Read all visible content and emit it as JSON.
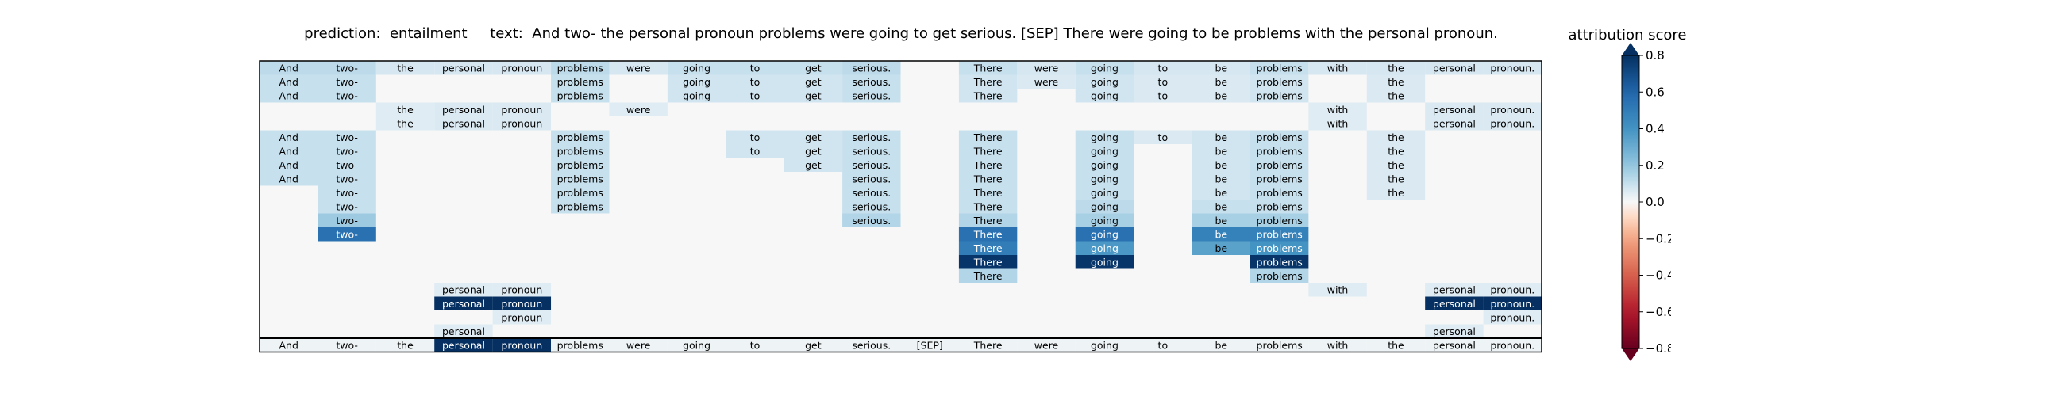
{
  "figure": {
    "title_prefix": "prediction:",
    "prediction": "entailment",
    "text_label": "text:",
    "text": "And two- the personal pronoun problems were going to get serious. [SEP] There were going to be problems with the personal pronoun."
  },
  "chart_data": {
    "type": "heatmap",
    "title": "prediction:  entailment     text:  And two- the personal pronoun problems were going to get serious. [SEP] There were going to be problems with the personal pronoun.",
    "tokens": [
      "And",
      "two-",
      "the",
      "personal",
      "pronoun",
      "problems",
      "were",
      "going",
      "to",
      "get",
      "serious.",
      "[SEP]",
      "There",
      "were",
      "going",
      "to",
      "be",
      "problems",
      "with",
      "the",
      "personal",
      "pronoun."
    ],
    "rows": [
      {
        "cells": [
          [
            0,
            0.12
          ],
          [
            1,
            0.12
          ],
          [
            2,
            0.07
          ],
          [
            3,
            0.07
          ],
          [
            4,
            0.07
          ],
          [
            5,
            0.12
          ],
          [
            6,
            0.07
          ],
          [
            7,
            0.1
          ],
          [
            8,
            0.1
          ],
          [
            9,
            0.1
          ],
          [
            10,
            0.12
          ],
          [
            12,
            0.1
          ],
          [
            13,
            0.07
          ],
          [
            14,
            0.1
          ],
          [
            15,
            0.07
          ],
          [
            16,
            0.07
          ],
          [
            17,
            0.1
          ],
          [
            18,
            0.07
          ],
          [
            19,
            0.07
          ],
          [
            20,
            0.07
          ],
          [
            21,
            0.07
          ]
        ]
      },
      {
        "cells": [
          [
            0,
            0.1
          ],
          [
            1,
            0.1
          ],
          [
            5,
            0.1
          ],
          [
            7,
            0.08
          ],
          [
            8,
            0.08
          ],
          [
            9,
            0.08
          ],
          [
            10,
            0.1
          ],
          [
            12,
            0.08
          ],
          [
            13,
            0.06
          ],
          [
            14,
            0.08
          ],
          [
            15,
            0.06
          ],
          [
            16,
            0.06
          ],
          [
            17,
            0.08
          ],
          [
            19,
            0.06
          ]
        ]
      },
      {
        "cells": [
          [
            0,
            0.1
          ],
          [
            1,
            0.1
          ],
          [
            5,
            0.1
          ],
          [
            7,
            0.08
          ],
          [
            8,
            0.08
          ],
          [
            9,
            0.08
          ],
          [
            10,
            0.1
          ],
          [
            12,
            0.08
          ],
          [
            14,
            0.08
          ],
          [
            15,
            0.06
          ],
          [
            16,
            0.06
          ],
          [
            17,
            0.08
          ],
          [
            19,
            0.06
          ]
        ]
      },
      {
        "cells": [
          [
            2,
            0.05
          ],
          [
            3,
            0.06
          ],
          [
            4,
            0.06
          ],
          [
            6,
            0.05
          ],
          [
            18,
            0.05
          ],
          [
            20,
            0.06
          ],
          [
            21,
            0.06
          ]
        ]
      },
      {
        "cells": [
          [
            2,
            0.05
          ],
          [
            3,
            0.06
          ],
          [
            4,
            0.06
          ],
          [
            18,
            0.05
          ],
          [
            20,
            0.06
          ],
          [
            21,
            0.06
          ]
        ]
      },
      {
        "cells": [
          [
            0,
            0.1
          ],
          [
            1,
            0.1
          ],
          [
            5,
            0.1
          ],
          [
            8,
            0.08
          ],
          [
            9,
            0.08
          ],
          [
            10,
            0.1
          ],
          [
            12,
            0.1
          ],
          [
            14,
            0.1
          ],
          [
            15,
            0.06
          ],
          [
            16,
            0.08
          ],
          [
            17,
            0.1
          ],
          [
            19,
            0.06
          ]
        ]
      },
      {
        "cells": [
          [
            0,
            0.1
          ],
          [
            1,
            0.1
          ],
          [
            5,
            0.1
          ],
          [
            8,
            0.08
          ],
          [
            9,
            0.08
          ],
          [
            10,
            0.1
          ],
          [
            12,
            0.1
          ],
          [
            14,
            0.1
          ],
          [
            16,
            0.08
          ],
          [
            17,
            0.1
          ],
          [
            19,
            0.06
          ]
        ]
      },
      {
        "cells": [
          [
            0,
            0.1
          ],
          [
            1,
            0.1
          ],
          [
            5,
            0.1
          ],
          [
            9,
            0.08
          ],
          [
            10,
            0.1
          ],
          [
            12,
            0.1
          ],
          [
            14,
            0.1
          ],
          [
            16,
            0.08
          ],
          [
            17,
            0.1
          ],
          [
            19,
            0.06
          ]
        ]
      },
      {
        "cells": [
          [
            0,
            0.1
          ],
          [
            1,
            0.1
          ],
          [
            5,
            0.1
          ],
          [
            10,
            0.1
          ],
          [
            12,
            0.1
          ],
          [
            14,
            0.1
          ],
          [
            16,
            0.08
          ],
          [
            17,
            0.1
          ],
          [
            19,
            0.06
          ]
        ]
      },
      {
        "cells": [
          [
            1,
            0.1
          ],
          [
            5,
            0.1
          ],
          [
            10,
            0.1
          ],
          [
            12,
            0.1
          ],
          [
            14,
            0.1
          ],
          [
            16,
            0.08
          ],
          [
            17,
            0.1
          ],
          [
            19,
            0.06
          ]
        ]
      },
      {
        "cells": [
          [
            1,
            0.1
          ],
          [
            5,
            0.1
          ],
          [
            10,
            0.1
          ],
          [
            12,
            0.1
          ],
          [
            14,
            0.12
          ],
          [
            16,
            0.1
          ],
          [
            17,
            0.1
          ]
        ]
      },
      {
        "cells": [
          [
            1,
            0.18
          ],
          [
            10,
            0.14
          ],
          [
            12,
            0.14
          ],
          [
            14,
            0.16
          ],
          [
            16,
            0.16
          ],
          [
            17,
            0.16
          ]
        ]
      },
      {
        "cells": [
          [
            1,
            0.55
          ],
          [
            12,
            0.55
          ],
          [
            14,
            0.55
          ],
          [
            16,
            0.48
          ],
          [
            17,
            0.48
          ]
        ]
      },
      {
        "cells": [
          [
            12,
            0.5
          ],
          [
            14,
            0.38
          ],
          [
            16,
            0.34
          ],
          [
            17,
            0.4
          ]
        ]
      },
      {
        "cells": [
          [
            12,
            0.78
          ],
          [
            14,
            0.78
          ],
          [
            17,
            0.78
          ]
        ]
      },
      {
        "cells": [
          [
            12,
            0.14
          ],
          [
            17,
            0.14
          ]
        ]
      },
      {
        "cells": [
          [
            3,
            0.05
          ],
          [
            4,
            0.05
          ],
          [
            18,
            0.05
          ],
          [
            20,
            0.05
          ],
          [
            21,
            0.05
          ]
        ]
      },
      {
        "cells": [
          [
            3,
            0.82
          ],
          [
            4,
            0.82
          ],
          [
            20,
            0.82
          ],
          [
            21,
            0.82
          ]
        ]
      },
      {
        "cells": [
          [
            4,
            0.05
          ],
          [
            21,
            0.05
          ]
        ]
      },
      {
        "cells": [
          [
            3,
            0.05
          ],
          [
            20,
            0.05
          ]
        ]
      },
      {
        "cells": [
          [
            0,
            0.02
          ],
          [
            1,
            0.02
          ],
          [
            2,
            0.02
          ],
          [
            3,
            0.82
          ],
          [
            4,
            0.82
          ],
          [
            5,
            0.02
          ],
          [
            6,
            0.02
          ],
          [
            7,
            0.02
          ],
          [
            8,
            0.02
          ],
          [
            9,
            0.02
          ],
          [
            10,
            0.02
          ],
          [
            11,
            0.02
          ],
          [
            12,
            0.02
          ],
          [
            13,
            0.02
          ],
          [
            14,
            0.02
          ],
          [
            15,
            0.02
          ],
          [
            16,
            0.02
          ],
          [
            17,
            0.02
          ],
          [
            18,
            0.02
          ],
          [
            19,
            0.02
          ],
          [
            20,
            0.02
          ],
          [
            21,
            0.02
          ]
        ]
      }
    ],
    "colorbar": {
      "label": "attribution score",
      "range": [
        -0.8,
        0.8
      ],
      "ticks": [
        0.8,
        0.6,
        0.4,
        0.2,
        0.0,
        -0.2,
        -0.4,
        -0.6,
        -0.8
      ],
      "tick_labels": [
        "0.8",
        "0.6",
        "0.4",
        "0.2",
        "0.0",
        "−0.2",
        "−0.4",
        "−0.6",
        "−0.8"
      ],
      "colormap": "RdBu"
    }
  }
}
